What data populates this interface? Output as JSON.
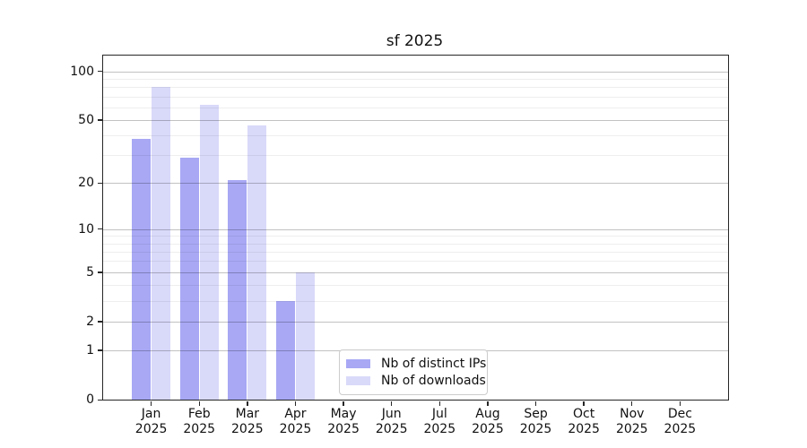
{
  "chart_data": {
    "type": "bar",
    "title": "sf 2025",
    "categories": [
      "Jan",
      "Feb",
      "Mar",
      "Apr",
      "May",
      "Jun",
      "Jul",
      "Aug",
      "Sep",
      "Oct",
      "Nov",
      "Dec"
    ],
    "category_year": "2025",
    "series": [
      {
        "name": "Nb of distinct IPs",
        "color": "#a8a8f5",
        "values": [
          38,
          29,
          21,
          3,
          0,
          0,
          0,
          0,
          0,
          0,
          0,
          0
        ]
      },
      {
        "name": "Nb of downloads",
        "color": "#d9d9fa",
        "values": [
          80,
          62,
          46,
          5,
          0,
          0,
          0,
          0,
          0,
          0,
          0,
          0
        ]
      }
    ],
    "yscale": "log1p",
    "ylim": [
      0,
      125
    ],
    "yticks_major": [
      0,
      1,
      2,
      5,
      10,
      20,
      50,
      100
    ],
    "yticks_minor": [
      3,
      4,
      6,
      7,
      8,
      9,
      30,
      40,
      60,
      70,
      80,
      90
    ],
    "grid": true,
    "legend_position": "lower-center-inside",
    "xlabel": "",
    "ylabel": ""
  }
}
